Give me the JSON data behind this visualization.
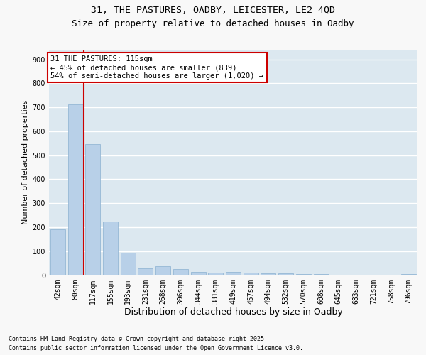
{
  "title_line1": "31, THE PASTURES, OADBY, LEICESTER, LE2 4QD",
  "title_line2": "Size of property relative to detached houses in Oadby",
  "xlabel": "Distribution of detached houses by size in Oadby",
  "ylabel": "Number of detached properties",
  "categories": [
    "42sqm",
    "80sqm",
    "117sqm",
    "155sqm",
    "193sqm",
    "231sqm",
    "268sqm",
    "306sqm",
    "344sqm",
    "381sqm",
    "419sqm",
    "457sqm",
    "494sqm",
    "532sqm",
    "570sqm",
    "608sqm",
    "645sqm",
    "683sqm",
    "721sqm",
    "758sqm",
    "796sqm"
  ],
  "values": [
    190,
    712,
    547,
    225,
    92,
    27,
    38,
    25,
    12,
    11,
    12,
    10,
    8,
    7,
    5,
    5,
    0,
    0,
    0,
    0,
    5
  ],
  "bar_color": "#b8d0e8",
  "bar_edge_color": "#8ab0d0",
  "vline_color": "#cc0000",
  "vline_x": 1.5,
  "annotation_text": "31 THE PASTURES: 115sqm\n← 45% of detached houses are smaller (839)\n54% of semi-detached houses are larger (1,020) →",
  "annotation_box_facecolor": "#ffffff",
  "annotation_box_edgecolor": "#cc0000",
  "ylim": [
    0,
    940
  ],
  "yticks": [
    0,
    100,
    200,
    300,
    400,
    500,
    600,
    700,
    800,
    900
  ],
  "plot_bg_color": "#dce8f0",
  "fig_bg_color": "#f8f8f8",
  "grid_color": "#ffffff",
  "footnote_line1": "Contains HM Land Registry data © Crown copyright and database right 2025.",
  "footnote_line2": "Contains public sector information licensed under the Open Government Licence v3.0.",
  "title1_fontsize": 9.5,
  "title2_fontsize": 9,
  "ylabel_fontsize": 8,
  "xlabel_fontsize": 9,
  "tick_fontsize": 7,
  "annot_fontsize": 7.5,
  "footnote_fontsize": 6
}
